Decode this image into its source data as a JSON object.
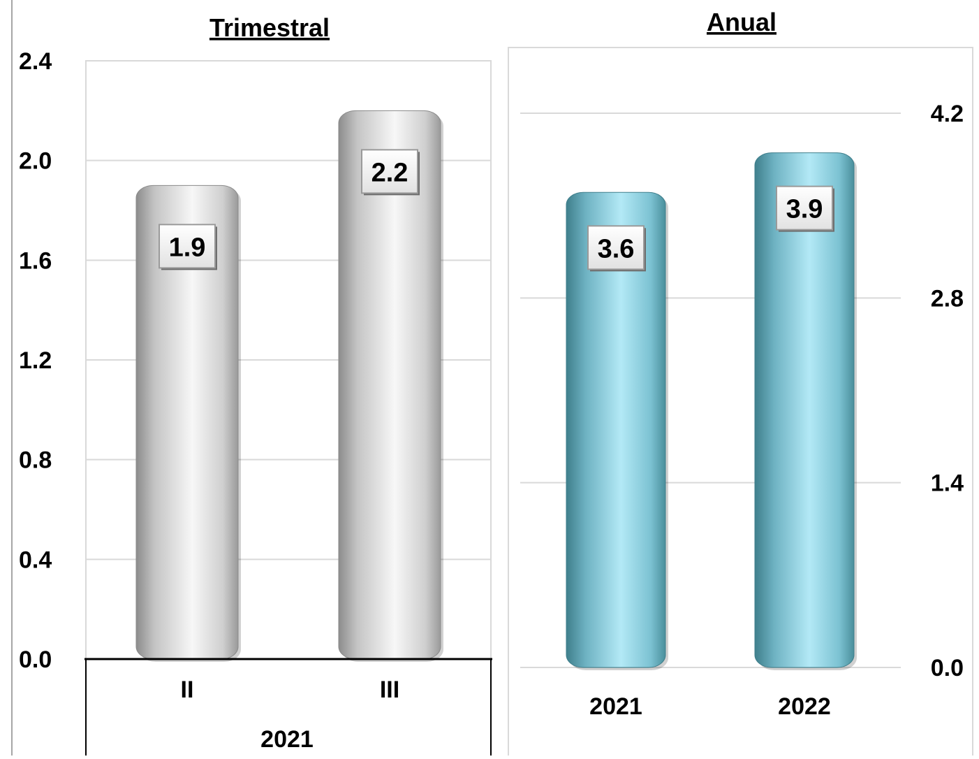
{
  "chart_data": [
    {
      "type": "bar",
      "title": "Trimestral",
      "categories": [
        "II",
        "III"
      ],
      "group_label": "2021",
      "values": [
        1.9,
        2.2
      ],
      "data_labels": [
        "1.9",
        "2.2"
      ],
      "yticks": [
        "0.0",
        "0.4",
        "0.8",
        "1.2",
        "1.6",
        "2.0",
        "2.4"
      ],
      "ylim": [
        0,
        2.4
      ],
      "y_axis_side": "left",
      "grid": true,
      "bar_color": "#d9d9d9"
    },
    {
      "type": "bar",
      "title": "Anual",
      "categories": [
        "2021",
        "2022"
      ],
      "values": [
        3.6,
        3.9
      ],
      "data_labels": [
        "3.6",
        "3.9"
      ],
      "yticks": [
        "0.0",
        "1.4",
        "2.8",
        "4.2"
      ],
      "ylim": [
        0,
        4.2
      ],
      "y_axis_side": "right",
      "grid": true,
      "bar_color": "#8fd0e0"
    }
  ]
}
